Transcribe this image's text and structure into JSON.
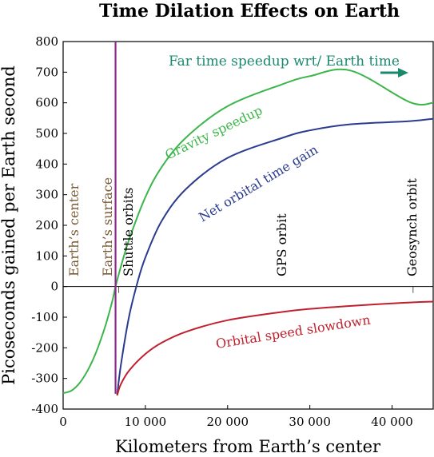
{
  "chart_data": {
    "type": "line",
    "title": "Time Dilation Effects on Earth",
    "xlabel": "Kilometers from Earth’s center",
    "ylabel": "Picoseconds gained per Earth second",
    "xlim": [
      0,
      45000
    ],
    "ylim": [
      -400,
      800
    ],
    "x_ticks": [
      0,
      10000,
      20000,
      30000,
      40000
    ],
    "x_tick_labels": [
      "0",
      "10 000",
      "20 000",
      "30 000",
      "40 000"
    ],
    "y_ticks": [
      -400,
      -300,
      -200,
      -100,
      0,
      100,
      200,
      300,
      400,
      500,
      600,
      700,
      800
    ],
    "y_tick_labels": [
      "-400",
      "-300",
      "-200",
      "-100",
      "0",
      "100",
      "200",
      "300",
      "400",
      "500",
      "600",
      "700",
      "800"
    ],
    "grid": false,
    "series": [
      {
        "name": "Gravity speedup",
        "color": "#3cb54a",
        "x": [
          0,
          1000,
          2000,
          3000,
          4000,
          5000,
          5500,
          6000,
          6371,
          7000,
          8000,
          10000,
          12000,
          15000,
          20000,
          26600,
          30000,
          35000,
          42164,
          45000
        ],
        "y": [
          -348,
          -340,
          -315,
          -273,
          -215,
          -140,
          -95,
          -45,
          0,
          63,
          152,
          292,
          391,
          488,
          589,
          660,
          687,
          705,
          602,
          600
        ]
      },
      {
        "name": "Net orbital time gain",
        "color": "#2b3b8f",
        "x": [
          6571,
          7000,
          8000,
          9000,
          10000,
          12000,
          15000,
          20000,
          26600,
          30000,
          35000,
          42164,
          45000
        ],
        "y": [
          -355,
          -260,
          -100,
          10,
          95,
          215,
          320,
          420,
          485,
          510,
          530,
          540,
          548
        ]
      },
      {
        "name": "Orbital speed slowdown",
        "color": "#c0202e",
        "x": [
          6571,
          7000,
          8000,
          10000,
          12000,
          15000,
          20000,
          26600,
          30000,
          35000,
          42164,
          45000
        ],
        "y": [
          -355,
          -320,
          -275,
          -220,
          -183,
          -147,
          -110,
          -83,
          -73,
          -63,
          -52,
          -49
        ]
      }
    ],
    "markers": [
      {
        "label": "Earth’s surface",
        "x": 6371,
        "color": "#8b2a8b"
      }
    ],
    "annotations": [
      {
        "text": "Far time speedup wrt/ Earth time",
        "color": "#1a8a6e",
        "arrow": "right"
      },
      {
        "text": "Earth’s center",
        "color": "#7a5a36"
      },
      {
        "text": "Earth’s surface",
        "color": "#7a5a36"
      },
      {
        "text": "Shuttle orbits",
        "color": "#000000"
      },
      {
        "text": "GPS orbit",
        "color": "#000000"
      },
      {
        "text": "Geosynch orbit",
        "color": "#000000"
      }
    ]
  }
}
